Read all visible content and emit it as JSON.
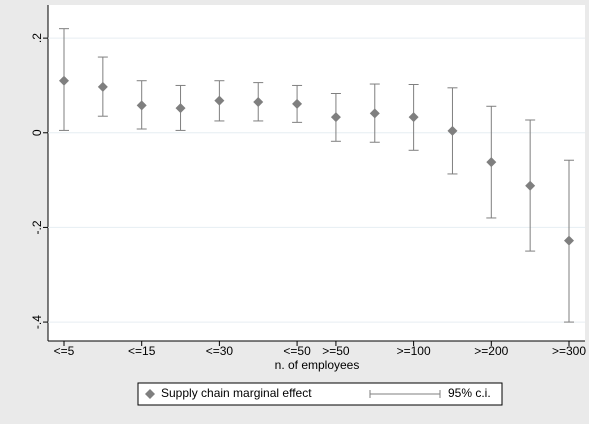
{
  "chart_data": {
    "type": "errorbar",
    "x_label": "n. of employees",
    "categories": [
      "<=5",
      null,
      "<=15",
      null,
      "<=30",
      null,
      "<=50",
      ">=50",
      null,
      ">=100",
      null,
      ">=200",
      null,
      ">=300"
    ],
    "series": [
      {
        "name": "Supply chain marginal effect",
        "color": "#7f7f7f",
        "values": [
          0.11,
          0.097,
          0.058,
          0.052,
          0.068,
          0.065,
          0.061,
          0.033,
          0.041,
          0.033,
          0.004,
          -0.062,
          -0.112,
          -0.228
        ]
      },
      {
        "name": "95% c.i.",
        "color": "#7f7f7f",
        "low": [
          0.005,
          0.035,
          0.008,
          0.005,
          0.025,
          0.025,
          0.022,
          -0.018,
          -0.02,
          -0.037,
          -0.087,
          -0.18,
          -0.25,
          -0.4
        ],
        "high": [
          0.22,
          0.16,
          0.11,
          0.1,
          0.11,
          0.106,
          0.1,
          0.083,
          0.103,
          0.102,
          0.095,
          0.056,
          0.027,
          -0.058
        ]
      }
    ],
    "ylim": [
      -0.44,
      0.27
    ],
    "yticks": [
      {
        "value": 0.2,
        "label": ".2"
      },
      0,
      {
        "value": -0.2,
        "label": "-.2"
      },
      {
        "value": -0.4,
        "label": "-.4"
      }
    ],
    "grid": true
  }
}
